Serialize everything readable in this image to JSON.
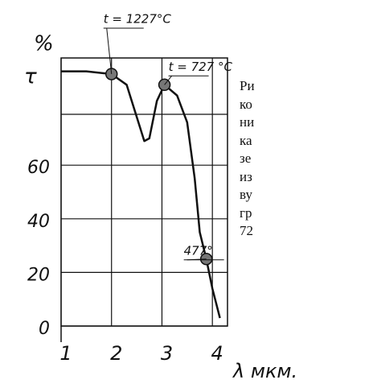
{
  "chart_data": {
    "type": "line",
    "y_label_top": "%",
    "y_label": "τ",
    "x_label": "λ мкм.",
    "x": [
      1,
      1.5,
      2,
      2.3,
      2.5,
      2.65,
      2.75,
      2.9,
      3.05,
      3.3,
      3.5,
      3.65,
      3.75,
      3.88,
      4,
      4.15
    ],
    "series": [
      {
        "color": "#111111",
        "values": [
          95,
          95,
          94,
          90,
          78,
          69,
          70,
          84,
          90,
          86,
          76,
          55,
          35,
          25,
          14,
          3
        ]
      }
    ],
    "points": [
      {
        "x": 2,
        "y": 94,
        "label": "t = 1227°C"
      },
      {
        "x": 3.05,
        "y": 90,
        "label": "t = 727 °C"
      },
      {
        "x": 3.88,
        "y": 25,
        "label": "477°"
      }
    ],
    "xlim": [
      1,
      4.3
    ],
    "ylim": [
      0,
      100
    ],
    "xticks": [
      1,
      2,
      3,
      4
    ],
    "yticks": [
      0,
      20,
      40,
      60
    ],
    "grid": true
  },
  "side_text": [
    "Ри",
    "ко",
    "ни",
    "ка",
    "зе",
    "из",
    "ву",
    "гр",
    "72"
  ]
}
